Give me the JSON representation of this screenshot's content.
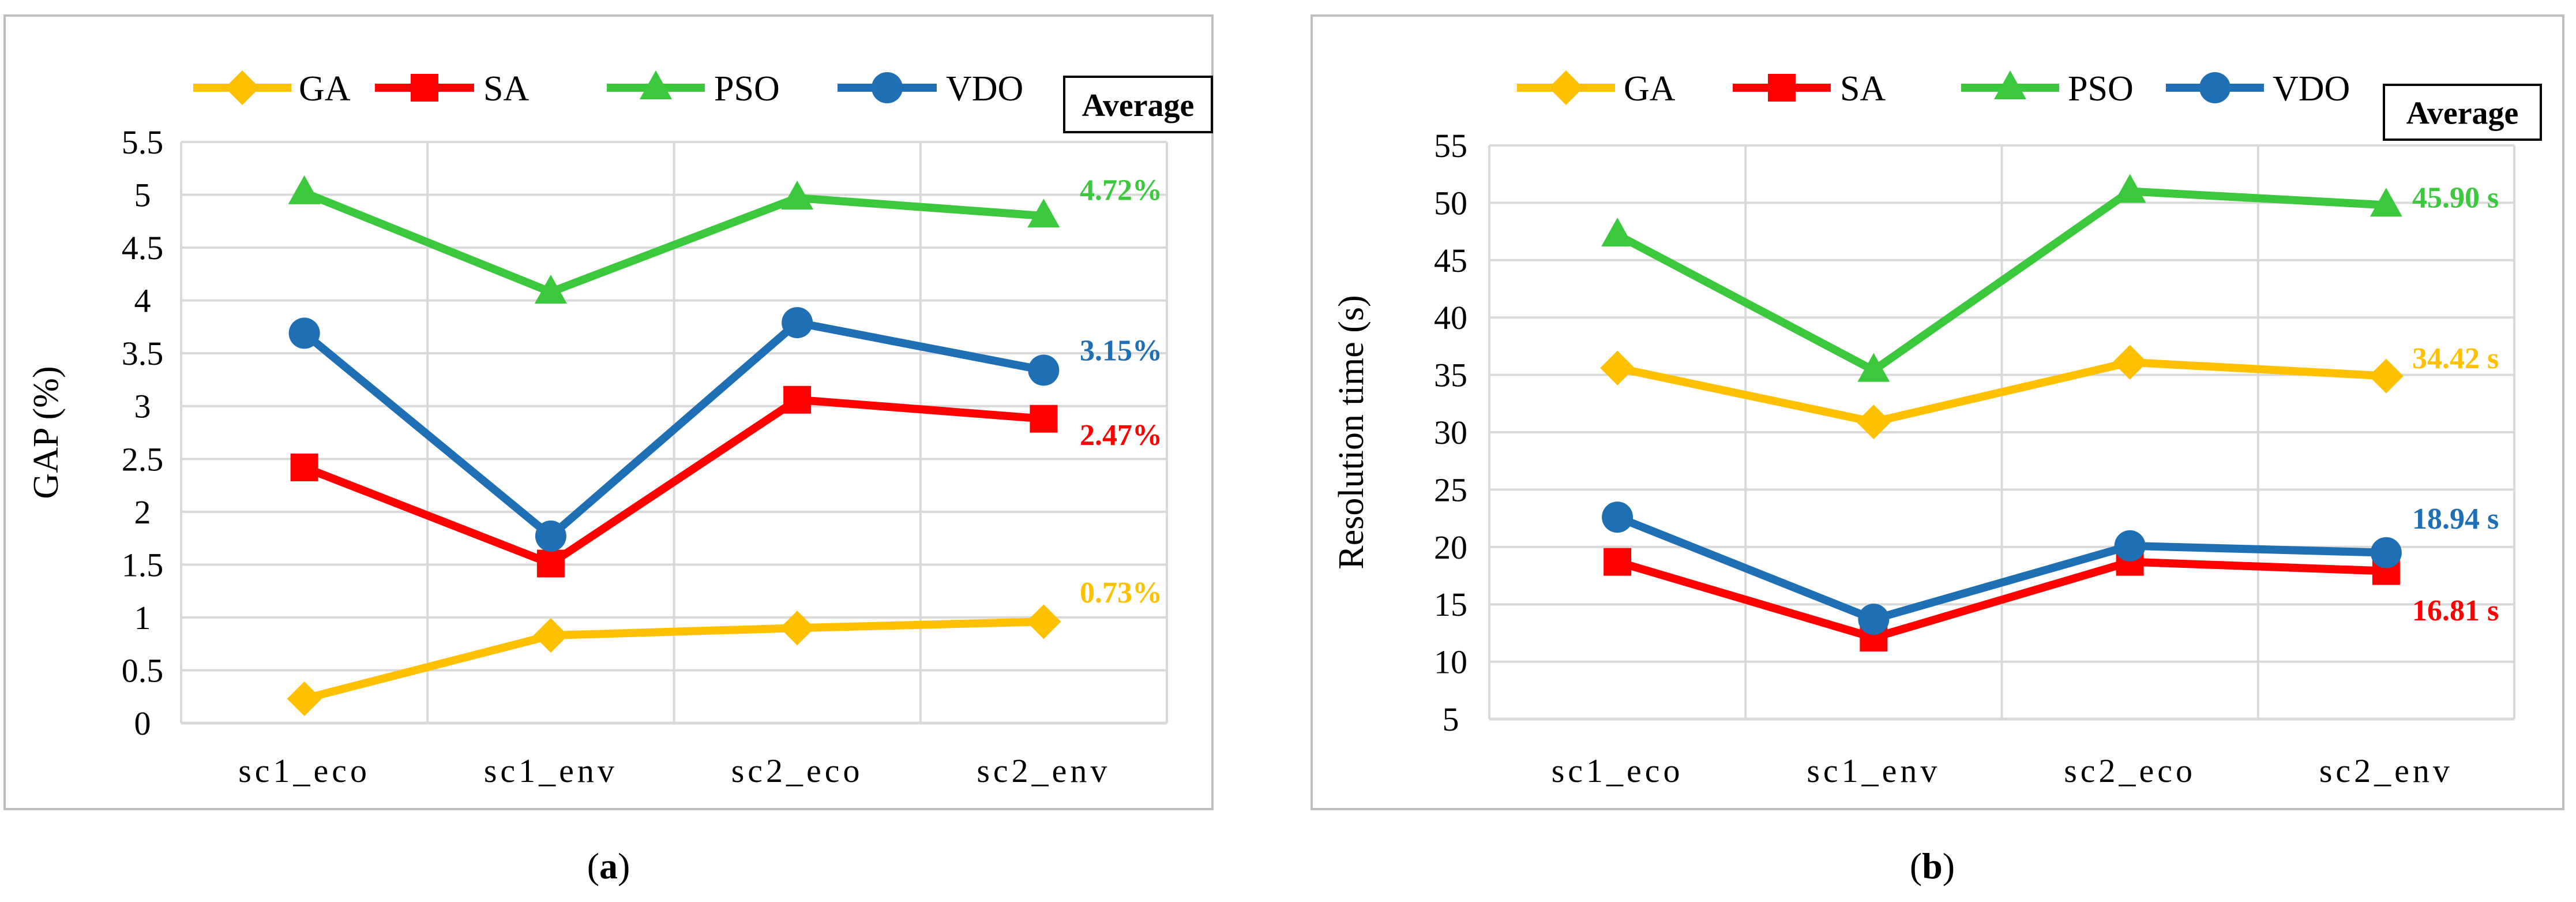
{
  "colors": {
    "GA": "#FFC000",
    "SA": "#FF0000",
    "PSO": "#3CC83C",
    "VDO": "#1F6FB5",
    "grid": "#D9D9D9",
    "frame": "#BFBFBF",
    "text": "#000000"
  },
  "chart_data": [
    {
      "type": "line",
      "panel_caption": {
        "open": "(",
        "letter": "a",
        "close": ")"
      },
      "title": "",
      "xlabel": "",
      "ylabel": "GAP (%)",
      "categories": [
        "sc1_eco",
        "sc1_env",
        "sc2_eco",
        "sc2_env"
      ],
      "ylim": [
        0,
        5.5
      ],
      "yticks": [
        0,
        0.5,
        1,
        1.5,
        2,
        2.5,
        3,
        3.5,
        4,
        4.5,
        5,
        5.5
      ],
      "ytick_labels": [
        "0",
        "0.5",
        "1",
        "1.5",
        "2",
        "2.5",
        "3",
        "3.5",
        "4",
        "4.5",
        "5",
        "5.5"
      ],
      "grid": true,
      "legend_position": "top",
      "average_label": "Average",
      "series": [
        {
          "name": "GA",
          "marker": "diamond",
          "values": [
            0.23,
            0.83,
            0.9,
            0.96
          ]
        },
        {
          "name": "SA",
          "marker": "square",
          "values": [
            2.42,
            1.51,
            3.06,
            2.88
          ]
        },
        {
          "name": "PSO",
          "marker": "triangle",
          "values": [
            5.02,
            4.08,
            4.97,
            4.8
          ]
        },
        {
          "name": "VDO",
          "marker": "circle",
          "values": [
            3.69,
            1.77,
            3.79,
            3.34
          ]
        }
      ],
      "annotations": [
        {
          "series": "PSO",
          "text": "4.72%",
          "anchor_value": 5.05
        },
        {
          "series": "VDO",
          "text": "3.15%",
          "anchor_value": 3.53
        },
        {
          "series": "SA",
          "text": "2.47%",
          "anchor_value": 2.73
        },
        {
          "series": "GA",
          "text": "0.73%",
          "anchor_value": 1.24
        }
      ]
    },
    {
      "type": "line",
      "panel_caption": {
        "open": "(",
        "letter": "b",
        "close": ")"
      },
      "title": "",
      "xlabel": "",
      "ylabel": "Resolution time (s)",
      "categories": [
        "sc1_eco",
        "sc1_env",
        "sc2_eco",
        "sc2_env"
      ],
      "ylim": [
        5,
        55
      ],
      "yticks": [
        5,
        10,
        15,
        20,
        25,
        30,
        35,
        40,
        45,
        50,
        55
      ],
      "ytick_labels": [
        "5",
        "10",
        "15",
        "20",
        "25",
        "30",
        "35",
        "40",
        "45",
        "50",
        "55"
      ],
      "grid": true,
      "legend_position": "top",
      "average_label": "Average",
      "series": [
        {
          "name": "GA",
          "marker": "diamond",
          "values": [
            35.6,
            30.9,
            36.1,
            34.9
          ]
        },
        {
          "name": "SA",
          "marker": "square",
          "values": [
            18.7,
            12.1,
            18.7,
            17.9
          ]
        },
        {
          "name": "PSO",
          "marker": "triangle",
          "values": [
            47.2,
            35.4,
            51.0,
            49.8
          ]
        },
        {
          "name": "VDO",
          "marker": "circle",
          "values": [
            22.6,
            13.7,
            20.1,
            19.5
          ]
        }
      ],
      "annotations": [
        {
          "series": "PSO",
          "text": "45.90 s",
          "anchor_value": 50.5
        },
        {
          "series": "GA",
          "text": "34.42 s",
          "anchor_value": 36.5
        },
        {
          "series": "VDO",
          "text": "18.94 s",
          "anchor_value": 22.5
        },
        {
          "series": "SA",
          "text": "16.81 s",
          "anchor_value": 14.5
        }
      ]
    }
  ]
}
